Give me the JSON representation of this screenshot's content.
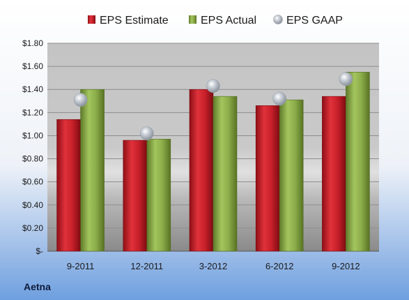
{
  "chart_data": {
    "type": "bar",
    "categories": [
      "9-2011",
      "12-2011",
      "3-2012",
      "6-2012",
      "9-2012"
    ],
    "series": [
      {
        "name": "EPS Estimate",
        "type": "bar",
        "color": "#c8202a",
        "values": [
          1.14,
          0.96,
          1.4,
          1.26,
          1.34
        ]
      },
      {
        "name": "EPS Actual",
        "type": "bar",
        "color": "#8cad4a",
        "values": [
          1.4,
          0.97,
          1.34,
          1.31,
          1.55
        ]
      },
      {
        "name": "EPS GAAP",
        "type": "marker",
        "color": "#b8bfc8",
        "values": [
          1.31,
          1.02,
          1.43,
          1.32,
          1.49
        ]
      }
    ],
    "y_ticks": [
      "$-",
      "$0.20",
      "$0.40",
      "$0.60",
      "$0.80",
      "$1.00",
      "$1.20",
      "$1.40",
      "$1.60",
      "$1.80"
    ],
    "ylim": [
      0,
      1.8
    ],
    "grid": true,
    "legend_position": "top",
    "company": "Aetna"
  }
}
